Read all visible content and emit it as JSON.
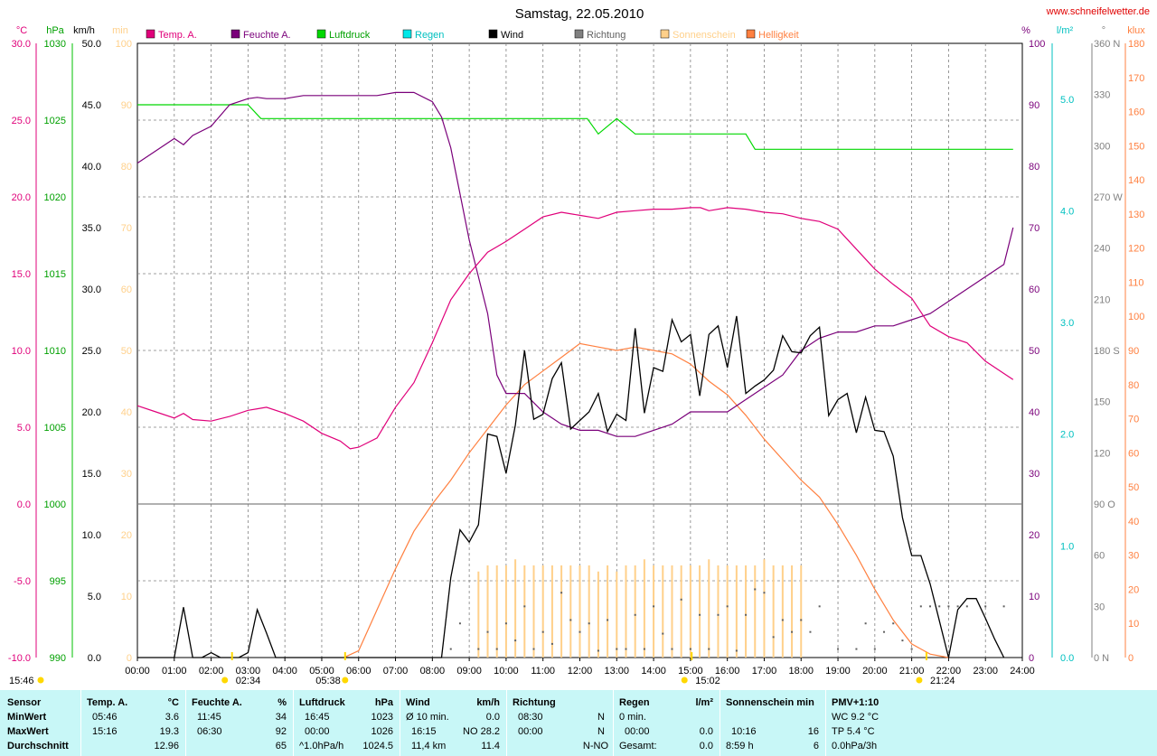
{
  "title": "Samstag, 22.05.2010",
  "website": "www.schneifelwetter.de",
  "colors": {
    "temp": "#e0007a",
    "humidity": "#7a007a",
    "pressure": "#00d800",
    "rain": "#00e8e8",
    "wind": "#000000",
    "direction": "#808080",
    "sunshine": "#ffd08a",
    "brightness": "#ff8040",
    "grid": "#808080",
    "stats_bg": "#c8f7f7"
  },
  "axis_units": {
    "temp": "°C",
    "pressure": "hPa",
    "wind": "km/h",
    "sunshine": "min",
    "humidity": "%",
    "rain": "l/m²",
    "direction": "°",
    "brightness": "klux"
  },
  "axis_ticks": {
    "temp": [
      "-10.0",
      "-5.0",
      "0.0",
      "5.0",
      "10.0",
      "15.0",
      "20.0",
      "25.0",
      "30.0"
    ],
    "pressure": [
      "990",
      "995",
      "1000",
      "1005",
      "1010",
      "1015",
      "1020",
      "1025",
      "1030"
    ],
    "wind": [
      "0.0",
      "5.0",
      "10.0",
      "15.0",
      "20.0",
      "25.0",
      "30.0",
      "35.0",
      "40.0",
      "45.0",
      "50.0"
    ],
    "sunshine": [
      "0",
      "10",
      "20",
      "30",
      "40",
      "50",
      "60",
      "70",
      "80",
      "90",
      "100"
    ],
    "humidity": [
      "0",
      "10",
      "20",
      "30",
      "40",
      "50",
      "60",
      "70",
      "80",
      "90",
      "100"
    ],
    "rain": [
      "0.0",
      "1.0",
      "2.0",
      "3.0",
      "4.0",
      "5.0"
    ],
    "direction": [
      "0 N",
      "30",
      "60",
      "90 O",
      "120",
      "150",
      "180 S",
      "210",
      "240",
      "270 W",
      "300",
      "330",
      "360 N"
    ],
    "brightness": [
      "0",
      "10",
      "20",
      "30",
      "40",
      "50",
      "60",
      "70",
      "80",
      "90",
      "100",
      "110",
      "120",
      "130",
      "140",
      "150",
      "160",
      "170",
      "180"
    ],
    "time": [
      "00:00",
      "01:00",
      "02:00",
      "03:00",
      "04:00",
      "05:00",
      "06:00",
      "07:00",
      "08:00",
      "09:00",
      "10:00",
      "11:00",
      "12:00",
      "13:00",
      "14:00",
      "15:00",
      "16:00",
      "17:00",
      "18:00",
      "19:00",
      "20:00",
      "21:00",
      "22:00",
      "23:00",
      "24:00"
    ]
  },
  "legend": [
    "Temp. A.",
    "Feuchte A.",
    "Luftdruck",
    "Regen",
    "Wind",
    "Richtung",
    "Sonnenschein",
    "Helligkeit"
  ],
  "time_markers": [
    {
      "label": "15:46",
      "note": "moonrise"
    },
    {
      "label": "02:34",
      "note": "moonset"
    },
    {
      "label": "05:38",
      "note": "sunrise"
    },
    {
      "label": "15:02",
      "note": "moon transit"
    },
    {
      "label": "21:24",
      "note": "sunset"
    }
  ],
  "chart_data": {
    "type": "line",
    "title": "Samstag, 22.05.2010",
    "x_unit": "hour of day",
    "xlim": [
      0,
      24
    ],
    "series": [
      {
        "name": "Temp. A.",
        "unit": "°C",
        "ylim": [
          -10,
          30
        ],
        "x": [
          0,
          0.5,
          1,
          1.25,
          1.5,
          2,
          2.5,
          3,
          3.25,
          3.5,
          4,
          4.5,
          5,
          5.5,
          5.77,
          6,
          6.5,
          7,
          7.5,
          8,
          8.5,
          9,
          9.5,
          10,
          10.5,
          11,
          11.5,
          12,
          12.5,
          13,
          13.5,
          14,
          14.5,
          15,
          15.27,
          15.5,
          16,
          16.5,
          17,
          17.5,
          18,
          18.5,
          19,
          19.5,
          20,
          20.5,
          21,
          21.5,
          22,
          22.5,
          23,
          23.5,
          23.75
        ],
        "y": [
          6.4,
          6.0,
          5.6,
          5.9,
          5.5,
          5.4,
          5.7,
          6.1,
          6.2,
          6.3,
          5.9,
          5.4,
          4.6,
          4.1,
          3.6,
          3.7,
          4.3,
          6.3,
          7.9,
          10.5,
          13.3,
          15.0,
          16.4,
          17.1,
          17.9,
          18.7,
          19.0,
          18.8,
          18.6,
          19.0,
          19.1,
          19.2,
          19.2,
          19.3,
          19.3,
          19.1,
          19.3,
          19.2,
          19.0,
          18.9,
          18.6,
          18.4,
          17.9,
          16.6,
          15.3,
          14.3,
          13.4,
          11.6,
          10.9,
          10.5,
          9.3,
          8.5,
          8.1
        ]
      },
      {
        "name": "Feuchte A.",
        "unit": "%",
        "ylim": [
          0,
          100
        ],
        "x": [
          0,
          0.5,
          1,
          1.25,
          1.5,
          2,
          2.5,
          3,
          3.25,
          3.5,
          4,
          4.5,
          5,
          5.5,
          6,
          6.5,
          7,
          7.5,
          8,
          8.25,
          8.5,
          9,
          9.5,
          9.75,
          10,
          10.5,
          11,
          11.5,
          12,
          12.5,
          13,
          13.5,
          14,
          14.5,
          15,
          15.5,
          16,
          16.5,
          17,
          17.5,
          18,
          18.5,
          19,
          19.5,
          20,
          20.5,
          21,
          21.5,
          22,
          22.5,
          23,
          23.5,
          23.75
        ],
        "y": [
          80.5,
          82.5,
          84.5,
          83.5,
          85,
          86.5,
          90,
          91,
          91.2,
          91,
          91,
          91.5,
          91.5,
          91.5,
          91.5,
          91.5,
          92,
          92,
          90.5,
          88,
          83,
          68,
          56,
          46,
          43,
          43,
          40,
          38,
          37,
          37,
          36,
          36,
          37,
          38,
          40,
          40,
          40,
          42,
          44,
          46,
          50,
          52,
          53,
          53,
          54,
          54,
          55,
          56,
          58,
          60,
          62,
          64,
          70
        ]
      },
      {
        "name": "Luftdruck",
        "unit": "hPa",
        "ylim": [
          990,
          1030
        ],
        "x": [
          0,
          3.0,
          3.35,
          12.2,
          12.5,
          13.0,
          13.5,
          16.5,
          16.75,
          23.75
        ],
        "y": [
          1026.0,
          1026.0,
          1025.1,
          1025.1,
          1024.1,
          1025.1,
          1024.1,
          1024.1,
          1023.1,
          1023.1
        ]
      },
      {
        "name": "Wind",
        "unit": "km/h",
        "ylim": [
          0,
          50
        ],
        "x": [
          0,
          1.0,
          1.25,
          1.5,
          1.75,
          2.0,
          2.25,
          2.5,
          2.75,
          3.0,
          3.25,
          3.5,
          3.75,
          4.0,
          8.25,
          8.5,
          8.75,
          9.0,
          9.25,
          9.5,
          9.75,
          10.0,
          10.25,
          10.5,
          10.75,
          11.0,
          11.25,
          11.5,
          11.75,
          12.0,
          12.25,
          12.5,
          12.75,
          13.0,
          13.25,
          13.5,
          13.75,
          14.0,
          14.25,
          14.5,
          14.75,
          15.0,
          15.25,
          15.5,
          15.75,
          16.0,
          16.25,
          16.5,
          16.75,
          17.0,
          17.25,
          17.5,
          17.75,
          18.0,
          18.25,
          18.5,
          18.75,
          19.0,
          19.25,
          19.5,
          19.75,
          20.0,
          20.25,
          20.5,
          20.75,
          21.0,
          21.25,
          21.5,
          21.75,
          22.0,
          22.25,
          22.5,
          22.75,
          23.0,
          23.25,
          23.5
        ],
        "y": [
          0,
          0,
          4.1,
          0,
          0,
          0.4,
          0,
          0,
          0,
          0.4,
          3.9,
          2.0,
          0,
          0,
          0,
          6.5,
          10.4,
          9.4,
          10.8,
          18.2,
          18.0,
          15.0,
          18.9,
          25.0,
          19.4,
          19.8,
          22.7,
          24.0,
          18.6,
          19.3,
          20.0,
          21.5,
          18.4,
          19.8,
          19.3,
          26.8,
          19.9,
          23.6,
          23.3,
          27.5,
          25.7,
          26.3,
          21.3,
          26.3,
          27.0,
          23.6,
          27.8,
          21.5,
          22.1,
          22.6,
          23.4,
          26.2,
          24.9,
          24.8,
          26.2,
          26.9,
          19.7,
          21.0,
          21.5,
          18.3,
          21.2,
          18.5,
          18.4,
          16.4,
          11.4,
          8.3,
          8.3,
          6.0,
          3.0,
          0,
          3.9,
          4.8,
          4.8,
          3.2,
          1.5,
          0
        ]
      },
      {
        "name": "Richtung",
        "unit": "°",
        "ylim": [
          0,
          360
        ],
        "style": "dots",
        "x": [
          8.5,
          8.75,
          9.25,
          9.5,
          9.75,
          10.0,
          10.25,
          10.5,
          10.75,
          11.0,
          11.25,
          11.5,
          11.75,
          12.0,
          12.25,
          12.5,
          12.75,
          13.0,
          13.25,
          13.5,
          13.75,
          14.0,
          14.25,
          14.5,
          14.75,
          15.0,
          15.25,
          15.5,
          15.75,
          16.0,
          16.25,
          16.5,
          16.75,
          17.0,
          17.25,
          17.5,
          17.75,
          18.0,
          18.25,
          18.5,
          19.0,
          19.5,
          19.75,
          20.0,
          20.25,
          20.5,
          20.75,
          21.0,
          21.25,
          21.5,
          21.75,
          22.0,
          22.25,
          22.5,
          23.0,
          23.5
        ],
        "y": [
          5,
          20,
          5,
          15,
          5,
          20,
          10,
          30,
          5,
          15,
          8,
          38,
          22,
          15,
          20,
          4,
          22,
          5,
          5,
          25,
          5,
          30,
          14,
          5,
          34,
          5,
          25,
          5,
          25,
          30,
          4,
          25,
          40,
          38,
          12,
          22,
          15,
          22,
          15,
          30,
          5,
          5,
          20,
          5,
          15,
          20,
          10,
          5,
          30,
          30,
          30,
          30,
          30,
          30,
          30,
          30
        ]
      },
      {
        "name": "Sonnenschein",
        "unit": "min",
        "ylim": [
          0,
          100
        ],
        "style": "bars",
        "x": [
          9.25,
          9.5,
          9.75,
          10.0,
          10.25,
          10.5,
          10.75,
          11.0,
          11.25,
          11.5,
          11.75,
          12.0,
          12.25,
          12.5,
          12.75,
          13.0,
          13.25,
          13.5,
          13.75,
          14.0,
          14.25,
          14.5,
          14.75,
          15.0,
          15.25,
          15.5,
          15.75,
          16.0,
          16.25,
          16.5,
          16.75,
          17.0,
          17.25,
          17.5,
          17.75,
          18.0
        ],
        "y": [
          14,
          15,
          15,
          15,
          16,
          15,
          15,
          15,
          15,
          15,
          15,
          15,
          15,
          14,
          15,
          14,
          15,
          15,
          16,
          15,
          15,
          15,
          15,
          15,
          15,
          16,
          15,
          15,
          15,
          15,
          15,
          16,
          15,
          15,
          15,
          15
        ]
      },
      {
        "name": "Helligkeit",
        "unit": "klux",
        "ylim": [
          0,
          180
        ],
        "x": [
          5.6,
          6.0,
          6.5,
          7.0,
          7.5,
          8.0,
          8.5,
          9.0,
          9.5,
          10.0,
          10.5,
          11.0,
          11.5,
          12.0,
          12.5,
          13.0,
          13.5,
          14.0,
          14.5,
          15.0,
          15.5,
          16.0,
          16.5,
          17.0,
          17.5,
          18.0,
          18.5,
          19.0,
          19.5,
          20.0,
          20.5,
          21.0,
          21.5,
          22.0
        ],
        "y": [
          0,
          2,
          14,
          26,
          37,
          45,
          52,
          60,
          67,
          74,
          80,
          84,
          88,
          92,
          91,
          90,
          91,
          90,
          89,
          86,
          81,
          77,
          71,
          64,
          58,
          52,
          47,
          39,
          30,
          20,
          11,
          4,
          1,
          0
        ]
      }
    ]
  },
  "stats": {
    "row_labels": [
      "Sensor",
      "MinWert",
      "MaxWert",
      "Durchschnitt"
    ],
    "temp": {
      "header": "Temp. A.",
      "unit": "°C",
      "min_time": "05:46",
      "min": "3.6",
      "max_time": "15:16",
      "max": "19.3",
      "avg": "12.96"
    },
    "humidity": {
      "header": "Feuchte A.",
      "unit": "%",
      "min_time": "11:45",
      "min": "34",
      "max_time": "06:30",
      "max": "92",
      "avg": "65"
    },
    "pressure": {
      "header": "Luftdruck",
      "unit": "hPa",
      "min_time": "16:45",
      "min": "1023",
      "max_time": "00:00",
      "max": "1026",
      "avg_label": "^1.0hPa/h",
      "avg": "1024.5"
    },
    "wind": {
      "header": "Wind",
      "unit": "km/h",
      "min_label": "Ø 10 min.",
      "min": "0.0",
      "max_time": "16:15",
      "max": "NO 28.2",
      "avg_label": "11,4 km",
      "avg": "11.4"
    },
    "direction": {
      "header": "Richtung",
      "min_time": "08:30",
      "min": "N",
      "max_time": "00:00",
      "max": "N",
      "avg": "N-NO"
    },
    "rain": {
      "header": "Regen",
      "unit": "l/m²",
      "min_label": "0 min.",
      "max_time": "00:00",
      "max": "0.0",
      "avg_label": "Gesamt:",
      "avg": "0.0"
    },
    "sun": {
      "header": "Sonnenschein min",
      "max_time": "10:16",
      "max": "16",
      "avg_label": "8:59 h",
      "avg": "6"
    },
    "pmv": {
      "header": "PMV+1:10",
      "line1": "WC 9.2 °C",
      "line2": "TP 5.4 °C",
      "line3": "0.0hPa/3h"
    }
  }
}
